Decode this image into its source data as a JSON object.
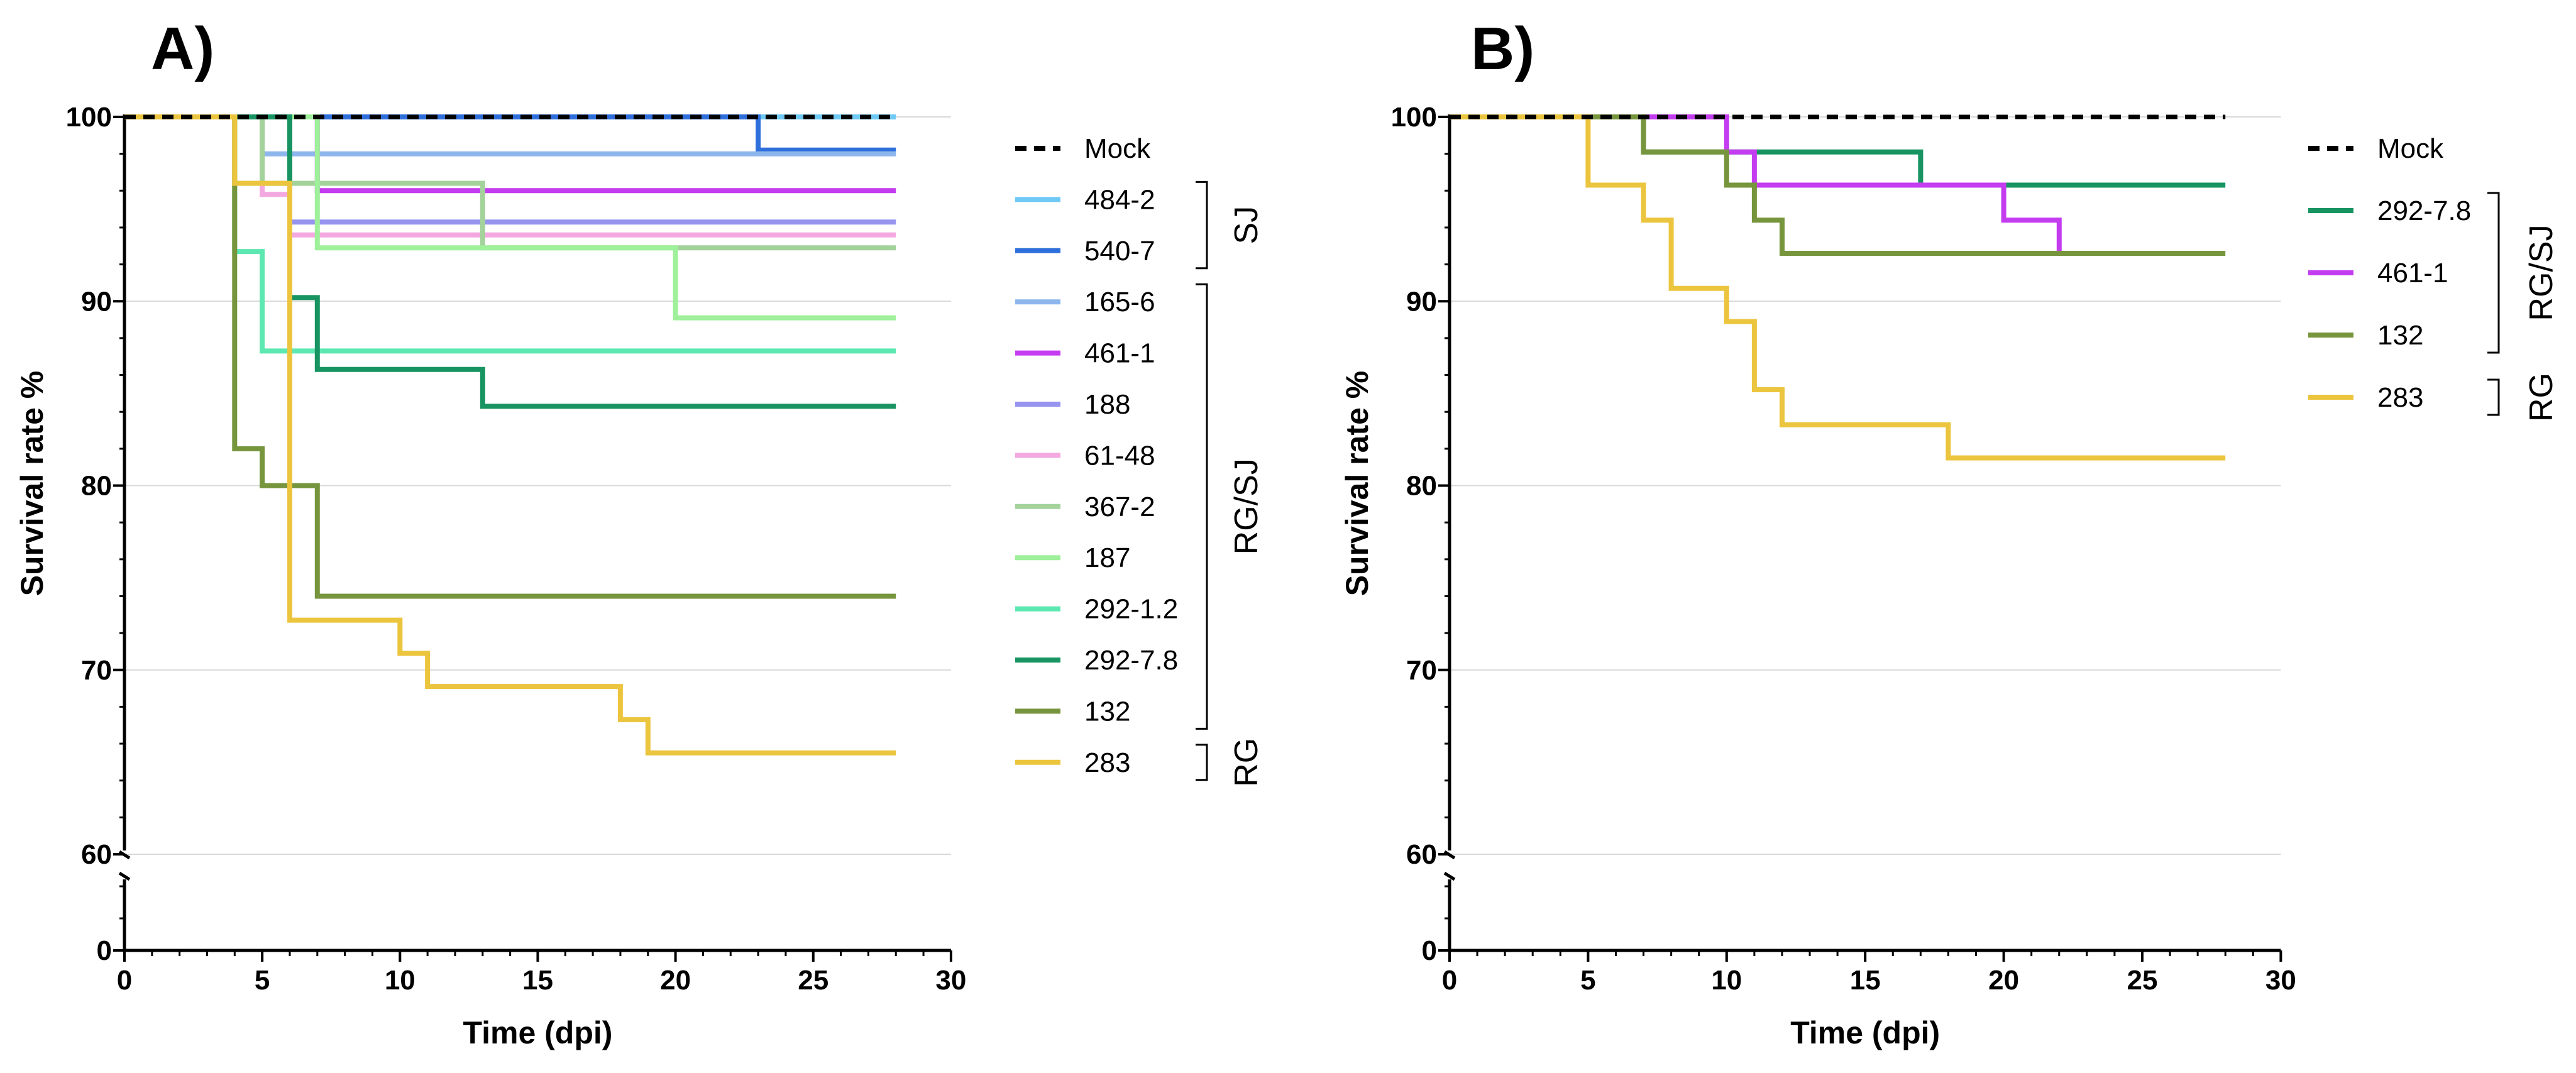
{
  "chart_data": [
    {
      "type": "line",
      "step": true,
      "panel_label": "A)",
      "xlabel": "Time (dpi)",
      "ylabel": "Survival rate %",
      "xlim": [
        0,
        30
      ],
      "ylim": [
        0,
        100
      ],
      "axis_break": [
        0,
        60
      ],
      "x_ticks": [
        "0",
        "5",
        "10",
        "15",
        "20",
        "25",
        "30"
      ],
      "y_ticks": [
        "0",
        "60",
        "70",
        "80",
        "90",
        "100"
      ],
      "grid": true,
      "legend_position": "right",
      "groups": [
        {
          "label": "SJ",
          "first": 1,
          "last": 2
        },
        {
          "label": "RG/SJ",
          "first": 3,
          "last": 11
        },
        {
          "label": "RG",
          "first": 12,
          "last": 12
        }
      ],
      "series": [
        {
          "name": "Mock",
          "color": "#000000",
          "dashed": true,
          "points": [
            [
              0,
              100
            ],
            [
              28,
              100
            ]
          ]
        },
        {
          "name": "484-2",
          "color": "#6ec9f5",
          "points": [
            [
              0,
              100
            ],
            [
              28,
              100
            ]
          ]
        },
        {
          "name": "540-7",
          "color": "#2f6fdc",
          "points": [
            [
              0,
              100
            ],
            [
              23,
              100
            ],
            [
              23,
              98.2
            ],
            [
              28,
              98.2
            ]
          ]
        },
        {
          "name": "165-6",
          "color": "#8db7ec",
          "points": [
            [
              0,
              100
            ],
            [
              5,
              100
            ],
            [
              5,
              98
            ],
            [
              28,
              98
            ]
          ]
        },
        {
          "name": "461-1",
          "color": "#c43cf0",
          "points": [
            [
              0,
              100
            ],
            [
              7,
              100
            ],
            [
              7,
              96
            ],
            [
              28,
              96
            ]
          ]
        },
        {
          "name": "188",
          "color": "#9694ef",
          "points": [
            [
              0,
              100
            ],
            [
              6,
              100
            ],
            [
              6,
              94.3
            ],
            [
              28,
              94.3
            ]
          ]
        },
        {
          "name": "61-48",
          "color": "#f4a8e0",
          "points": [
            [
              0,
              100
            ],
            [
              5,
              100
            ],
            [
              5,
              95.8
            ],
            [
              6,
              95.8
            ],
            [
              6,
              93.6
            ],
            [
              28,
              93.6
            ]
          ]
        },
        {
          "name": "367-2",
          "color": "#a3d29b",
          "points": [
            [
              0,
              100
            ],
            [
              5,
              100
            ],
            [
              5,
              96.4
            ],
            [
              13,
              96.4
            ],
            [
              13,
              92.9
            ],
            [
              28,
              92.9
            ]
          ]
        },
        {
          "name": "187",
          "color": "#9ff09a",
          "points": [
            [
              0,
              100
            ],
            [
              7,
              100
            ],
            [
              7,
              92.9
            ],
            [
              20,
              92.9
            ],
            [
              20,
              89.1
            ],
            [
              28,
              89.1
            ]
          ]
        },
        {
          "name": "292-1.2",
          "color": "#5de8b2",
          "points": [
            [
              0,
              100
            ],
            [
              4,
              100
            ],
            [
              4,
              92.7
            ],
            [
              5,
              92.7
            ],
            [
              5,
              87.3
            ],
            [
              28,
              87.3
            ]
          ]
        },
        {
          "name": "292-7.8",
          "color": "#179461",
          "points": [
            [
              0,
              100
            ],
            [
              6,
              100
            ],
            [
              6,
              90.2
            ],
            [
              7,
              90.2
            ],
            [
              7,
              86.3
            ],
            [
              13,
              86.3
            ],
            [
              13,
              84.3
            ],
            [
              28,
              84.3
            ]
          ]
        },
        {
          "name": "132",
          "color": "#76953c",
          "points": [
            [
              0,
              100
            ],
            [
              4,
              100
            ],
            [
              4,
              82
            ],
            [
              5,
              82
            ],
            [
              5,
              80
            ],
            [
              7,
              80
            ],
            [
              7,
              74
            ],
            [
              28,
              74
            ]
          ]
        },
        {
          "name": "283",
          "color": "#ecc53e",
          "points": [
            [
              0,
              100
            ],
            [
              4,
              100
            ],
            [
              4,
              96.4
            ],
            [
              6,
              96.4
            ],
            [
              6,
              72.7
            ],
            [
              10,
              72.7
            ],
            [
              10,
              70.9
            ],
            [
              11,
              70.9
            ],
            [
              11,
              69.1
            ],
            [
              18,
              69.1
            ],
            [
              18,
              67.3
            ],
            [
              19,
              67.3
            ],
            [
              19,
              65.5
            ],
            [
              28,
              65.5
            ]
          ]
        }
      ]
    },
    {
      "type": "line",
      "step": true,
      "panel_label": "B)",
      "xlabel": "Time (dpi)",
      "ylabel": "Survival rate %",
      "xlim": [
        0,
        30
      ],
      "ylim": [
        0,
        100
      ],
      "axis_break": [
        0,
        60
      ],
      "x_ticks": [
        "0",
        "5",
        "10",
        "15",
        "20",
        "25",
        "30"
      ],
      "y_ticks": [
        "0",
        "60",
        "70",
        "80",
        "90",
        "100"
      ],
      "grid": true,
      "legend_position": "right",
      "groups": [
        {
          "label": "RG/SJ",
          "first": 1,
          "last": 3
        },
        {
          "label": "RG",
          "first": 4,
          "last": 4
        }
      ],
      "series": [
        {
          "name": "Mock",
          "color": "#000000",
          "dashed": true,
          "points": [
            [
              0,
              100
            ],
            [
              28,
              100
            ]
          ]
        },
        {
          "name": "292-7.8",
          "color": "#179461",
          "points": [
            [
              0,
              100
            ],
            [
              7,
              100
            ],
            [
              7,
              98.1
            ],
            [
              17,
              98.1
            ],
            [
              17,
              96.3
            ],
            [
              28,
              96.3
            ]
          ]
        },
        {
          "name": "461-1",
          "color": "#c43cf0",
          "points": [
            [
              0,
              100
            ],
            [
              10,
              100
            ],
            [
              10,
              98.1
            ],
            [
              11,
              98.1
            ],
            [
              11,
              96.3
            ],
            [
              20,
              96.3
            ],
            [
              20,
              94.4
            ],
            [
              22,
              94.4
            ],
            [
              22,
              92.6
            ]
          ]
        },
        {
          "name": "132",
          "color": "#76953c",
          "points": [
            [
              0,
              100
            ],
            [
              7,
              100
            ],
            [
              7,
              98.1
            ],
            [
              10,
              98.1
            ],
            [
              10,
              96.3
            ],
            [
              11,
              96.3
            ],
            [
              11,
              94.4
            ],
            [
              12,
              94.4
            ],
            [
              12,
              92.6
            ],
            [
              28,
              92.6
            ]
          ]
        },
        {
          "name": "283",
          "color": "#ecc53e",
          "points": [
            [
              0,
              100
            ],
            [
              5,
              100
            ],
            [
              5,
              96.3
            ],
            [
              7,
              96.3
            ],
            [
              7,
              94.4
            ],
            [
              8,
              94.4
            ],
            [
              8,
              90.7
            ],
            [
              10,
              90.7
            ],
            [
              10,
              88.9
            ],
            [
              11,
              88.9
            ],
            [
              11,
              85.2
            ],
            [
              12,
              85.2
            ],
            [
              12,
              83.3
            ],
            [
              18,
              83.3
            ],
            [
              18,
              81.5
            ],
            [
              28,
              81.5
            ]
          ]
        }
      ]
    }
  ]
}
